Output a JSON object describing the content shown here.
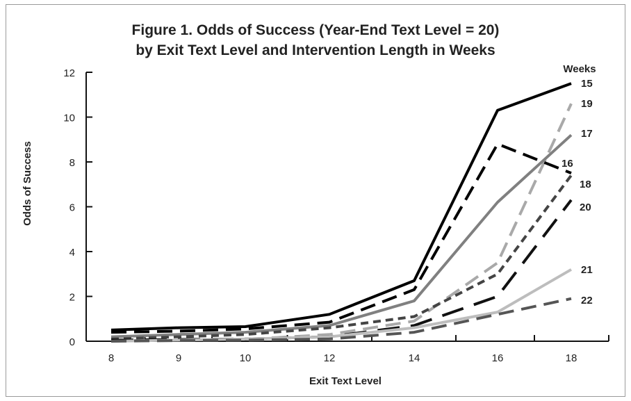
{
  "chart_data": {
    "type": "line",
    "title_line1": "Figure 1. Odds of Success (Year-End Text Level = 20)",
    "title_line2": "by Exit Text Level and Intervention Length in Weeks",
    "xlabel": "Exit Text Level",
    "ylabel": "Odds of Success",
    "legend_title": "Weeks",
    "categories": [
      "8",
      "9",
      "10",
      "12",
      "14",
      "16",
      "18"
    ],
    "ylim": [
      0,
      12
    ],
    "yticks": [
      "0",
      "2",
      "4",
      "6",
      "8",
      "10",
      "12"
    ],
    "grid": false,
    "series": [
      {
        "name": "15",
        "values": [
          0.5,
          0.6,
          0.65,
          1.2,
          2.7,
          10.3,
          11.5
        ],
        "color": "#000000",
        "dash": "solid",
        "width": 4
      },
      {
        "name": "19",
        "values": [
          0.02,
          0.05,
          0.08,
          0.3,
          0.9,
          3.5,
          10.6
        ],
        "color": "#a9a9a9",
        "dash": "long",
        "width": 4
      },
      {
        "name": "17",
        "values": [
          0.2,
          0.3,
          0.4,
          0.7,
          1.8,
          6.2,
          9.2
        ],
        "color": "#808080",
        "dash": "solid",
        "width": 4
      },
      {
        "name": "16",
        "values": [
          0.4,
          0.45,
          0.55,
          0.85,
          2.3,
          8.8,
          7.5
        ],
        "color": "#000000",
        "dash": "long",
        "width": 4
      },
      {
        "name": "18",
        "values": [
          0.1,
          0.2,
          0.3,
          0.6,
          1.1,
          3.0,
          7.4
        ],
        "color": "#444444",
        "dash": "short",
        "width": 4
      },
      {
        "name": "20",
        "values": [
          0.05,
          0.08,
          0.1,
          0.2,
          0.7,
          2.0,
          6.3
        ],
        "color": "#111111",
        "dash": "xlong",
        "width": 4
      },
      {
        "name": "21",
        "values": [
          0.0,
          0.05,
          0.1,
          0.2,
          0.6,
          1.3,
          3.2
        ],
        "color": "#bdbdbd",
        "dash": "solid",
        "width": 4
      },
      {
        "name": "22",
        "values": [
          0.0,
          0.03,
          0.05,
          0.1,
          0.4,
          1.2,
          1.9
        ],
        "color": "#555555",
        "dash": "long",
        "width": 4
      }
    ]
  }
}
